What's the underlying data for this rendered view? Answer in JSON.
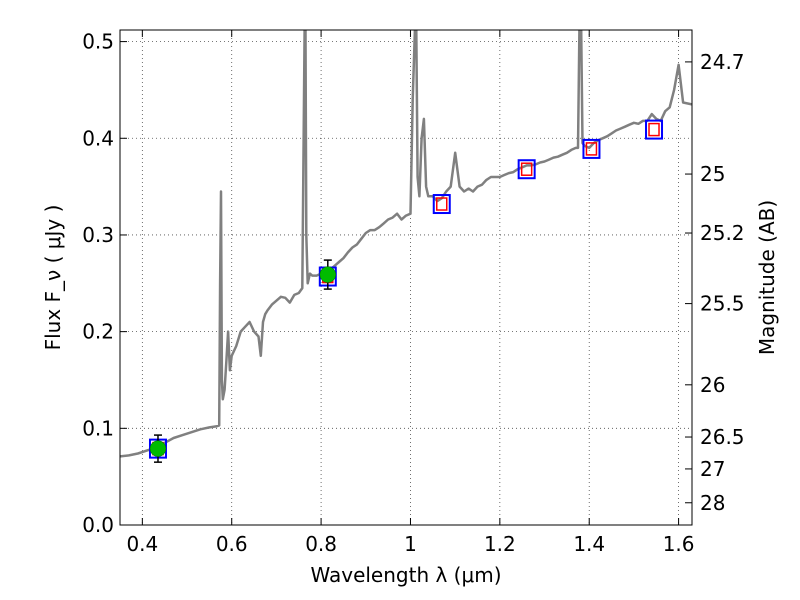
{
  "chart_data": {
    "type": "line",
    "xlabel": "Wavelength  λ (μm)",
    "ylabel": "Flux  F_ν  ( μJy )",
    "y2label": "Magnitude (AB)",
    "xlim": [
      0.35,
      1.63
    ],
    "ylim": [
      0.0,
      0.512
    ],
    "grid": true,
    "x_ticks": [
      0.4,
      0.6,
      0.8,
      1.0,
      1.2,
      1.4,
      1.6
    ],
    "x_tick_labels": [
      "0.4",
      "0.6",
      "0.8",
      "1",
      "1.2",
      "1.4",
      "1.6"
    ],
    "y_ticks": [
      0.0,
      0.1,
      0.2,
      0.3,
      0.4,
      0.5
    ],
    "y_tick_labels": [
      "0.0",
      "0.1",
      "0.2",
      "0.3",
      "0.4",
      "0.5"
    ],
    "y2_ticks": [
      {
        "label": "24.7",
        "flux": 0.479
      },
      {
        "label": "25",
        "flux": 0.363
      },
      {
        "label": "25.2",
        "flux": 0.302
      },
      {
        "label": "25.5",
        "flux": 0.229
      },
      {
        "label": "26",
        "flux": 0.145
      },
      {
        "label": "26.5",
        "flux": 0.091
      },
      {
        "label": "27",
        "flux": 0.058
      },
      {
        "label": "28",
        "flux": 0.023
      }
    ],
    "colors": {
      "sed": "#808080",
      "model_box": "#0000ff",
      "model_marker": "#ff0000",
      "observed": "#00bb00",
      "error_bar": "#000000"
    },
    "series": [
      {
        "kind": "model_sed",
        "x": [
          0.35,
          0.37,
          0.39,
          0.41,
          0.43,
          0.45,
          0.47,
          0.49,
          0.51,
          0.53,
          0.55,
          0.565,
          0.572,
          0.574,
          0.576,
          0.578,
          0.58,
          0.584,
          0.588,
          0.592,
          0.596,
          0.6,
          0.61,
          0.62,
          0.63,
          0.64,
          0.65,
          0.66,
          0.665,
          0.67,
          0.675,
          0.68,
          0.69,
          0.7,
          0.71,
          0.72,
          0.73,
          0.74,
          0.75,
          0.758,
          0.763,
          0.765,
          0.767,
          0.77,
          0.775,
          0.78,
          0.79,
          0.8,
          0.81,
          0.82,
          0.83,
          0.84,
          0.85,
          0.86,
          0.87,
          0.88,
          0.89,
          0.9,
          0.91,
          0.92,
          0.93,
          0.94,
          0.95,
          0.96,
          0.97,
          0.98,
          0.99,
          1.0,
          1.005,
          1.01,
          1.013,
          1.016,
          1.02,
          1.025,
          1.03,
          1.035,
          1.04,
          1.05,
          1.06,
          1.07,
          1.08,
          1.09,
          1.1,
          1.11,
          1.12,
          1.13,
          1.14,
          1.15,
          1.16,
          1.17,
          1.18,
          1.19,
          1.2,
          1.21,
          1.22,
          1.23,
          1.24,
          1.25,
          1.26,
          1.27,
          1.28,
          1.29,
          1.3,
          1.31,
          1.32,
          1.33,
          1.34,
          1.35,
          1.36,
          1.37,
          1.375,
          1.378,
          1.382,
          1.385,
          1.39,
          1.4,
          1.41,
          1.42,
          1.43,
          1.44,
          1.45,
          1.46,
          1.47,
          1.48,
          1.49,
          1.5,
          1.51,
          1.52,
          1.53,
          1.54,
          1.55,
          1.56,
          1.57,
          1.58,
          1.59,
          1.6,
          1.61,
          1.63
        ],
        "y": [
          0.071,
          0.072,
          0.074,
          0.077,
          0.08,
          0.085,
          0.09,
          0.093,
          0.096,
          0.099,
          0.101,
          0.102,
          0.103,
          0.25,
          0.345,
          0.15,
          0.13,
          0.14,
          0.17,
          0.2,
          0.16,
          0.175,
          0.185,
          0.2,
          0.205,
          0.21,
          0.2,
          0.195,
          0.175,
          0.21,
          0.218,
          0.222,
          0.228,
          0.232,
          0.236,
          0.235,
          0.23,
          0.238,
          0.24,
          0.245,
          0.512,
          0.512,
          0.3,
          0.25,
          0.26,
          0.258,
          0.258,
          0.26,
          0.262,
          0.264,
          0.268,
          0.272,
          0.276,
          0.282,
          0.287,
          0.29,
          0.296,
          0.302,
          0.305,
          0.305,
          0.308,
          0.312,
          0.316,
          0.318,
          0.322,
          0.316,
          0.32,
          0.322,
          0.44,
          0.512,
          0.512,
          0.36,
          0.34,
          0.4,
          0.42,
          0.35,
          0.34,
          0.34,
          0.335,
          0.338,
          0.345,
          0.35,
          0.385,
          0.35,
          0.345,
          0.348,
          0.345,
          0.35,
          0.352,
          0.357,
          0.36,
          0.36,
          0.36,
          0.362,
          0.364,
          0.365,
          0.368,
          0.37,
          0.372,
          0.372,
          0.373,
          0.375,
          0.376,
          0.378,
          0.38,
          0.381,
          0.383,
          0.385,
          0.388,
          0.39,
          0.39,
          0.512,
          0.512,
          0.395,
          0.392,
          0.39,
          0.395,
          0.398,
          0.4,
          0.402,
          0.405,
          0.408,
          0.41,
          0.412,
          0.414,
          0.416,
          0.415,
          0.418,
          0.418,
          0.425,
          0.42,
          0.418,
          0.428,
          0.432,
          0.45,
          0.476,
          0.437,
          0.435
        ]
      },
      {
        "kind": "model_photometry",
        "x": [
          0.435,
          0.815,
          1.07,
          1.26,
          1.405,
          1.545
        ],
        "y": [
          0.079,
          0.257,
          0.332,
          0.368,
          0.389,
          0.409
        ]
      },
      {
        "kind": "observed_photometry",
        "x": [
          0.435,
          0.815
        ],
        "y": [
          0.079,
          0.259
        ],
        "yerr": [
          0.014,
          0.015
        ]
      }
    ]
  }
}
